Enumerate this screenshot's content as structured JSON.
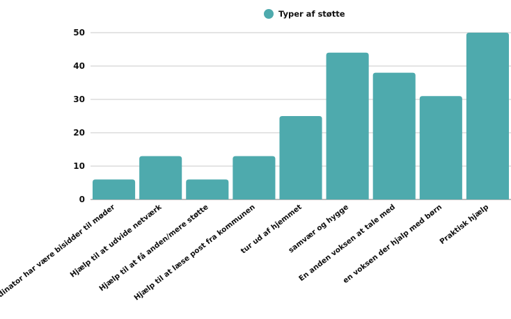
{
  "chart_data": {
    "type": "bar",
    "categories": [
      "Koordinator har være bisidder til møder",
      "Hjælp til at udvide netværk",
      "Hjælp til at få anden/mere støtte",
      "Hjælp til at læse post fra kommunen",
      "tur ud af hjemmet",
      "samvær og hygge",
      "En anden voksen at tale med",
      "en voksen der hjalp med børn",
      "Praktisk hjælp"
    ],
    "series": [
      {
        "name": "Typer af støtte",
        "values": [
          6,
          13,
          6,
          13,
          25,
          44,
          38,
          31,
          50
        ],
        "color": "#4eaaad"
      }
    ],
    "ylim": [
      0,
      50
    ],
    "yticks": [
      0,
      10,
      20,
      30,
      40,
      50
    ],
    "grid": true,
    "legend_position": "top-center"
  }
}
